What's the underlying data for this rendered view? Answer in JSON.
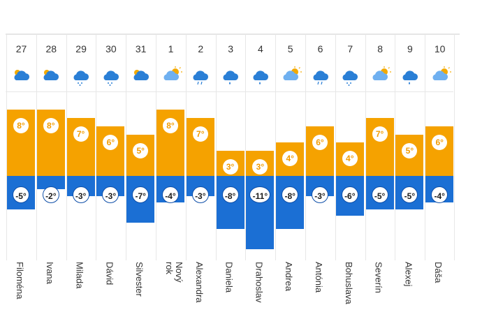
{
  "chart_data": {
    "type": "bar",
    "title": "",
    "xlabel": "",
    "ylabel": "",
    "categories": [
      "27",
      "28",
      "29",
      "30",
      "31",
      "1",
      "2",
      "3",
      "4",
      "5",
      "6",
      "7",
      "8",
      "9",
      "10"
    ],
    "series": [
      {
        "name": "max",
        "values": [
          8,
          8,
          7,
          6,
          5,
          8,
          7,
          3,
          3,
          4,
          6,
          4,
          7,
          5,
          6
        ]
      },
      {
        "name": "min",
        "values": [
          -5,
          -2,
          -3,
          -3,
          -7,
          -4,
          -3,
          -8,
          -11,
          -8,
          -3,
          -6,
          -5,
          -5,
          -4
        ]
      }
    ],
    "ylim": [
      -11,
      8
    ],
    "grid": false
  },
  "days": [
    {
      "num": "27",
      "name": "Filoména",
      "icon": "cloud-sun-icon",
      "hi": "8°",
      "lo": "-5°"
    },
    {
      "num": "28",
      "name": "Ivana",
      "icon": "cloud-sun-icon",
      "hi": "8°",
      "lo": "-2°"
    },
    {
      "num": "29",
      "name": "Milada",
      "icon": "cloud-snow-icon",
      "hi": "7°",
      "lo": "-3°"
    },
    {
      "num": "30",
      "name": "Dávid",
      "icon": "cloud-snow-icon",
      "hi": "6°",
      "lo": "-3°"
    },
    {
      "num": "31",
      "name": "Silvester",
      "icon": "cloud-sun-icon",
      "hi": "5°",
      "lo": "-7°"
    },
    {
      "num": "1",
      "name": "Nový\nrok",
      "icon": "sun-cloud-icon",
      "hi": "8°",
      "lo": "-4°"
    },
    {
      "num": "2",
      "name": "Alexandra",
      "icon": "cloud-rain-icon",
      "hi": "7°",
      "lo": "-3°"
    },
    {
      "num": "3",
      "name": "Daniela",
      "icon": "cloud-drop-icon",
      "hi": "3°",
      "lo": "-8°"
    },
    {
      "num": "4",
      "name": "Drahoslav",
      "icon": "cloud-drop-icon",
      "hi": "3°",
      "lo": "-11°"
    },
    {
      "num": "5",
      "name": "Andrea",
      "icon": "sun-cloud-icon",
      "hi": "4°",
      "lo": "-8°"
    },
    {
      "num": "6",
      "name": "Antónia",
      "icon": "cloud-rain-icon",
      "hi": "6°",
      "lo": "-3°"
    },
    {
      "num": "7",
      "name": "Bohuslava",
      "icon": "cloud-snow-icon",
      "hi": "4°",
      "lo": "-6°"
    },
    {
      "num": "8",
      "name": "Severín",
      "icon": "sun-cloud-icon",
      "hi": "7°",
      "lo": "-5°"
    },
    {
      "num": "9",
      "name": "Alexej",
      "icon": "cloud-drop-icon",
      "hi": "5°",
      "lo": "-5°"
    },
    {
      "num": "10",
      "name": "Dáša",
      "icon": "sun-cloud-icon",
      "hi": "6°",
      "lo": "-4°"
    }
  ],
  "colors": {
    "warm": "#f5a200",
    "cold": "#1b6fd4",
    "icon": "#2a7fd6",
    "sun": "#f2a900"
  }
}
